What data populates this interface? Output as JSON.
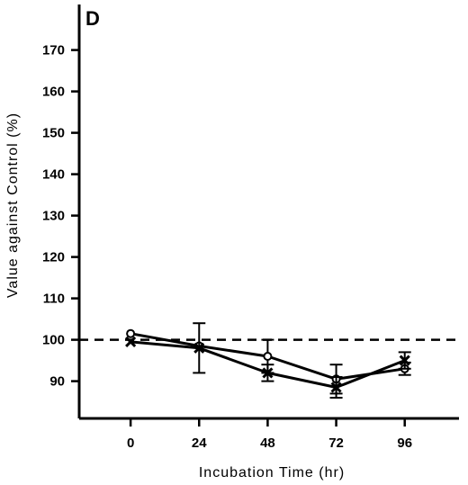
{
  "chart_data": {
    "type": "line",
    "panel_label": "D",
    "xlabel": "Incubation Time (hr)",
    "ylabel": "Value against Control (%)",
    "x": [
      0,
      24,
      48,
      72,
      96
    ],
    "xticks": [
      "0",
      "24",
      "48",
      "72",
      "96"
    ],
    "xlim": [
      -18,
      115
    ],
    "yticks": [
      "90",
      "100",
      "110",
      "120",
      "130",
      "140",
      "150",
      "160",
      "170"
    ],
    "ylim": [
      81,
      181
    ],
    "reference_line": {
      "y": 100,
      "style": "dashed"
    },
    "grid": false,
    "legend": "none",
    "series": [
      {
        "marker": "open-circle",
        "values": [
          101.5,
          98.5,
          96,
          90.5,
          93
        ],
        "error": [
          0,
          0,
          4,
          3.5,
          1.5
        ]
      },
      {
        "marker": "x",
        "values": [
          99.5,
          98,
          92,
          88.5,
          95
        ],
        "error": [
          0,
          6,
          2,
          2.5,
          2
        ]
      }
    ]
  }
}
